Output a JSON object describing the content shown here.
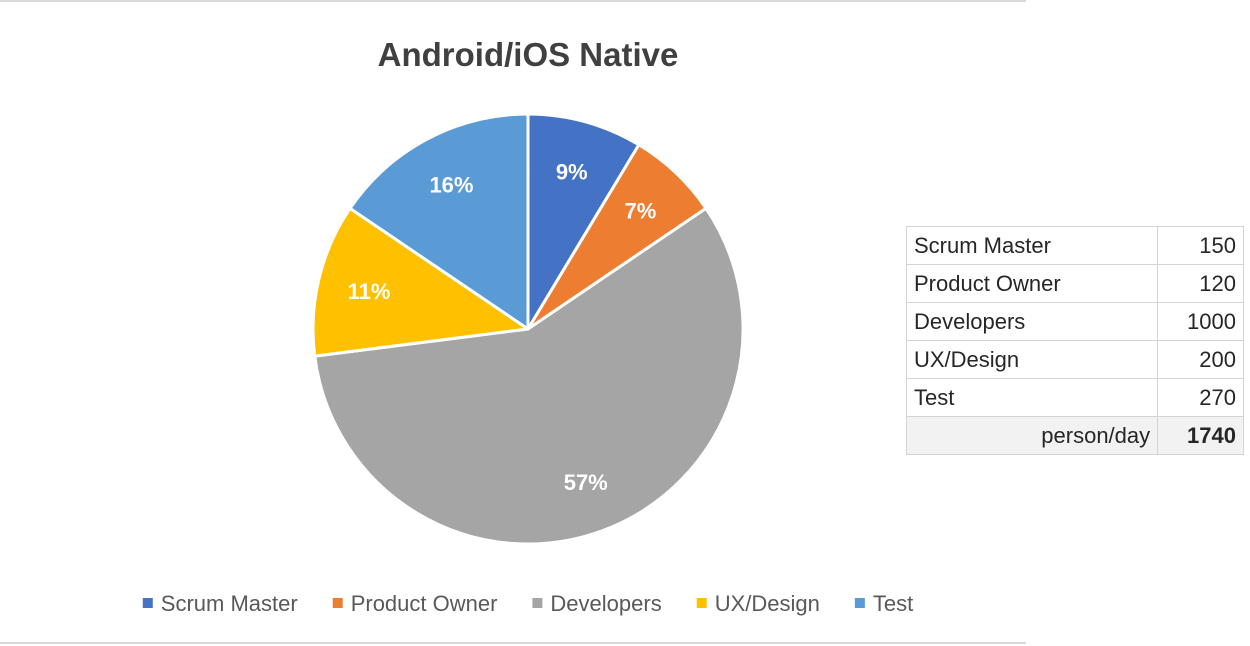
{
  "chart_data": {
    "type": "pie",
    "title": "Android/iOS  Native",
    "categories": [
      "Scrum Master",
      "Product Owner",
      "Developers",
      "UX/Design",
      "Test"
    ],
    "values": [
      150,
      120,
      1000,
      200,
      270
    ],
    "data_labels": [
      "9%",
      "7%",
      "57%",
      "11%",
      "16%"
    ],
    "colors": [
      "#4472c4",
      "#ed7d31",
      "#a5a5a5",
      "#ffc000",
      "#5b9bd5"
    ],
    "legend_position": "bottom"
  },
  "table": {
    "rows": [
      {
        "label": "Scrum Master",
        "value": "150"
      },
      {
        "label": "Product Owner",
        "value": "120"
      },
      {
        "label": "Developers",
        "value": "1000"
      },
      {
        "label": "UX/Design",
        "value": "200"
      },
      {
        "label": "Test",
        "value": "270"
      }
    ],
    "total_label": "person/day",
    "total_value": "1740"
  }
}
